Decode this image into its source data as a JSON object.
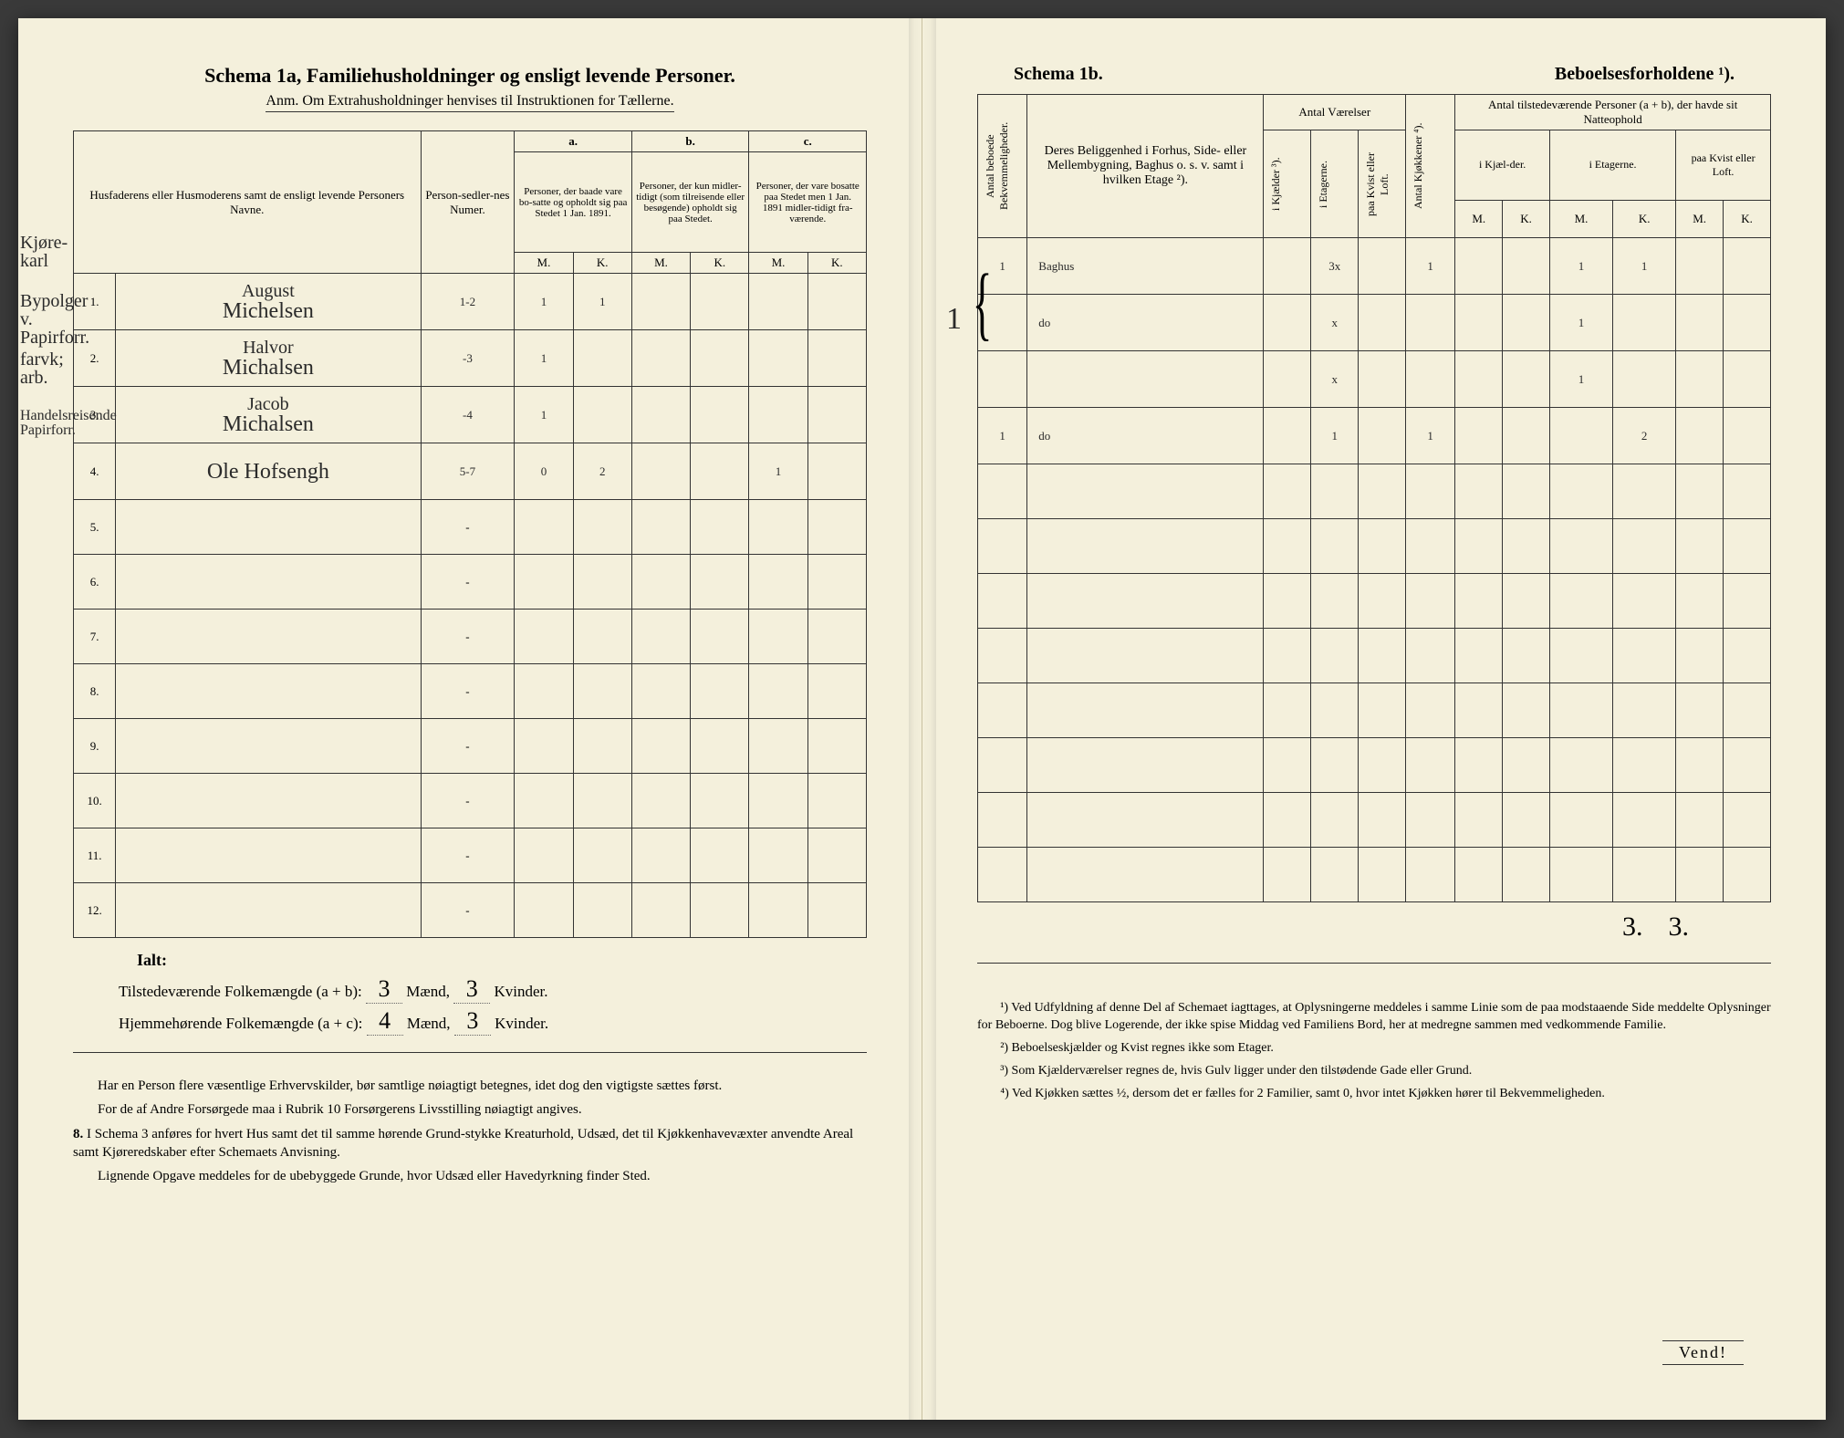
{
  "left": {
    "title": "Schema 1a,  Familiehusholdninger og ensligt levende Personer.",
    "subtitle": "Anm. Om Extrahusholdninger henvises til Instruktionen for Tællerne.",
    "col_names": "Husfaderens eller Husmoderens samt de ensligt levende Personers Navne.",
    "col_numer": "Person-sedler-nes Numer.",
    "group_a": "a.",
    "group_a_desc": "Personer, der baade vare bo-satte og opholdt sig paa Stedet 1 Jan. 1891.",
    "group_b": "b.",
    "group_b_desc": "Personer, der kun midler-tidigt (som tilreisende eller besøgende) opholdt sig paa Stedet.",
    "group_c": "c.",
    "group_c_desc": "Personer, der vare bosatte paa Stedet men 1 Jan. 1891 midler-tidigt fra-værende.",
    "mk_m": "M.",
    "mk_k": "K.",
    "rows": [
      {
        "n": "1.",
        "name_top": "August",
        "name_bot": "Michelsen",
        "num": "1-2",
        "a_m": "1",
        "a_k": "1",
        "b_m": "",
        "b_k": "",
        "c_m": "",
        "c_k": "",
        "margin": "Kjøre-karl"
      },
      {
        "n": "2.",
        "name_top": "Halvor",
        "name_bot": "Michalsen",
        "num": "-3",
        "a_m": "1",
        "a_k": "",
        "b_m": "",
        "b_k": "",
        "c_m": "",
        "c_k": "",
        "margin": "Bypolger v. Papirforr."
      },
      {
        "n": "3.",
        "name_top": "Jacob",
        "name_bot": "Michalsen",
        "num": "-4",
        "a_m": "1",
        "a_k": "",
        "b_m": "",
        "b_k": "",
        "c_m": "",
        "c_k": "",
        "margin": "farvk; arb."
      },
      {
        "n": "4.",
        "name_top": "",
        "name_bot": "Ole Hofsengh",
        "num": "5-7",
        "a_m": "0",
        "a_k": "2",
        "b_m": "",
        "b_k": "",
        "c_m": "1",
        "c_k": "",
        "margin": "Handelsreisende Papirforr."
      }
    ],
    "empty_rows": [
      "5.",
      "6.",
      "7.",
      "8.",
      "9.",
      "10.",
      "11.",
      "12."
    ],
    "ialt": "Ialt:",
    "tot1_label_pre": "Tilstedeværende Folkemængde (a + b): ",
    "tot1_m": "3",
    "tot1_mid": " Mænd, ",
    "tot1_k": "3",
    "tot1_post": " Kvinder.",
    "tot2_label_pre": "Hjemmehørende Folkemængde (a + c): ",
    "tot2_m": "4",
    "tot2_mid": " Mænd, ",
    "tot2_k": "3",
    "tot2_post": " Kvinder.",
    "body1": "Har en Person flere væsentlige Erhvervskilder, bør samtlige nøiagtigt betegnes, idet dog den vigtigste sættes først.",
    "body2": "For de af Andre Forsørgede maa i Rubrik 10 Forsørgerens Livsstilling nøiagtigt angives.",
    "body3_lead": "8.",
    "body3": "I Schema 3 anføres for hvert Hus samt det til samme hørende Grund-stykke Kreaturhold, Udsæd, det til Kjøkkenhavevæxter anvendte Areal samt Kjøreredskaber efter Schemaets Anvisning.",
    "body4": "Lignende Opgave meddeles for de ubebyggede Grunde, hvor Udsæd eller Havedyrkning finder Sted."
  },
  "right": {
    "title_left": "Schema 1b.",
    "title_right": "Beboelsesforholdene ¹).",
    "col_bekv": "Antal beboede Bekvemmeligheder.",
    "col_belig": "Deres Beliggenhed i Forhus, Side- eller Mellembygning, Baghus o. s. v. samt i hvilken Etage ²).",
    "col_vaer": "Antal Værelser",
    "col_kjael": "i Kjælder ³).",
    "col_etag": "i Etagerne.",
    "col_kvist": "paa Kvist eller Loft.",
    "col_kjok": "Antal Kjøkkener ⁴).",
    "col_natte": "Antal tilstedeværende Personer (a + b), der havde sit Natteophold",
    "col_n_kjael": "i Kjæl-der.",
    "col_n_etag": "i Etagerne.",
    "col_n_kvist": "paa Kvist eller Loft.",
    "mk_m": "M.",
    "mk_k": "K.",
    "rows": [
      {
        "bekv": "1",
        "belig": "Baghus",
        "kj": "",
        "et": "3x",
        "kv": "",
        "kjok": "1",
        "nkm": "",
        "nkk": "",
        "nem": "1",
        "nek": "1",
        "nvm": "",
        "nvk": ""
      },
      {
        "bekv": "",
        "belig": "do",
        "kj": "",
        "et": "x",
        "kv": "",
        "kjok": "",
        "nkm": "",
        "nkk": "",
        "nem": "1",
        "nek": "",
        "nvm": "",
        "nvk": ""
      },
      {
        "bekv": "",
        "belig": "",
        "kj": "",
        "et": "x",
        "kv": "",
        "kjok": "",
        "nkm": "",
        "nkk": "",
        "nem": "1",
        "nek": "",
        "nvm": "",
        "nvk": ""
      },
      {
        "bekv": "1",
        "belig": "do",
        "kj": "",
        "et": "1",
        "kv": "",
        "kjok": "1",
        "nkm": "",
        "nkk": "",
        "nem": "",
        "nek": "2",
        "nvm": "",
        "nvk": ""
      }
    ],
    "brace_label": "1",
    "totals": {
      "m": "3.",
      "k": "3."
    },
    "fn1": "¹) Ved Udfyldning af denne Del af Schemaet iagttages, at Oplysningerne meddeles i samme Linie som de paa modstaaende Side meddelte Oplysninger for Beboerne. Dog blive Logerende, der ikke spise Middag ved Familiens Bord, her at medregne sammen med vedkommende Familie.",
    "fn2": "²) Beboelseskjælder og Kvist regnes ikke som Etager.",
    "fn3": "³) Som Kjælderværelser regnes de, hvis Gulv ligger under den tilstødende Gade eller Grund.",
    "fn4": "⁴) Ved Kjøkken sættes ½, dersom det er fælles for 2 Familier, samt 0, hvor intet Kjøkken hører til Bekvemmeligheden.",
    "vend": "Vend!"
  },
  "colors": {
    "paper": "#f4f0dc",
    "ink": "#2a2a2a",
    "rule": "#333333"
  }
}
